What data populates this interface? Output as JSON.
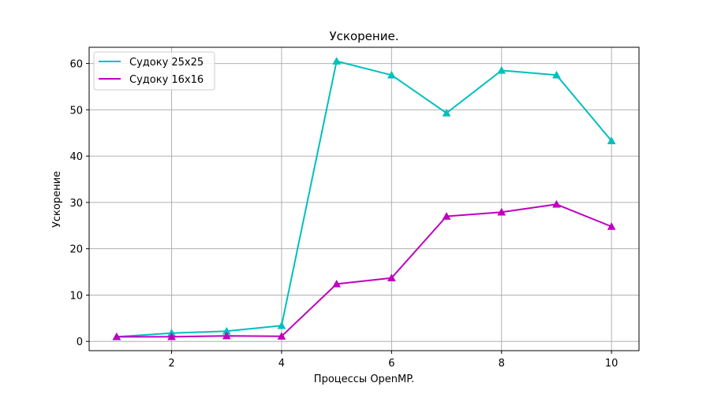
{
  "chart_data": {
    "type": "line",
    "title": "Ускорение.",
    "xlabel": "Процессы OpenMP.",
    "ylabel": "Ускорение",
    "x": [
      1,
      2,
      3,
      4,
      5,
      6,
      7,
      8,
      9,
      10
    ],
    "xlim": [
      0.5,
      10.5
    ],
    "ylim": [
      -2,
      63.5
    ],
    "xticks": [
      2,
      4,
      6,
      8,
      10
    ],
    "yticks": [
      0,
      10,
      20,
      30,
      40,
      50,
      60
    ],
    "grid": true,
    "legend_position": "top-left",
    "marker": "triangle",
    "series": [
      {
        "name": "Судоку 25x25",
        "color": "#00bfbf",
        "values": [
          1.0,
          1.8,
          2.2,
          3.4,
          60.5,
          57.5,
          49.3,
          58.5,
          57.5,
          43.3
        ]
      },
      {
        "name": "Судоку 16x16",
        "color": "#bf00bf",
        "values": [
          1.0,
          1.0,
          1.2,
          1.1,
          12.4,
          13.7,
          27.0,
          27.9,
          29.6,
          24.8
        ]
      }
    ]
  }
}
